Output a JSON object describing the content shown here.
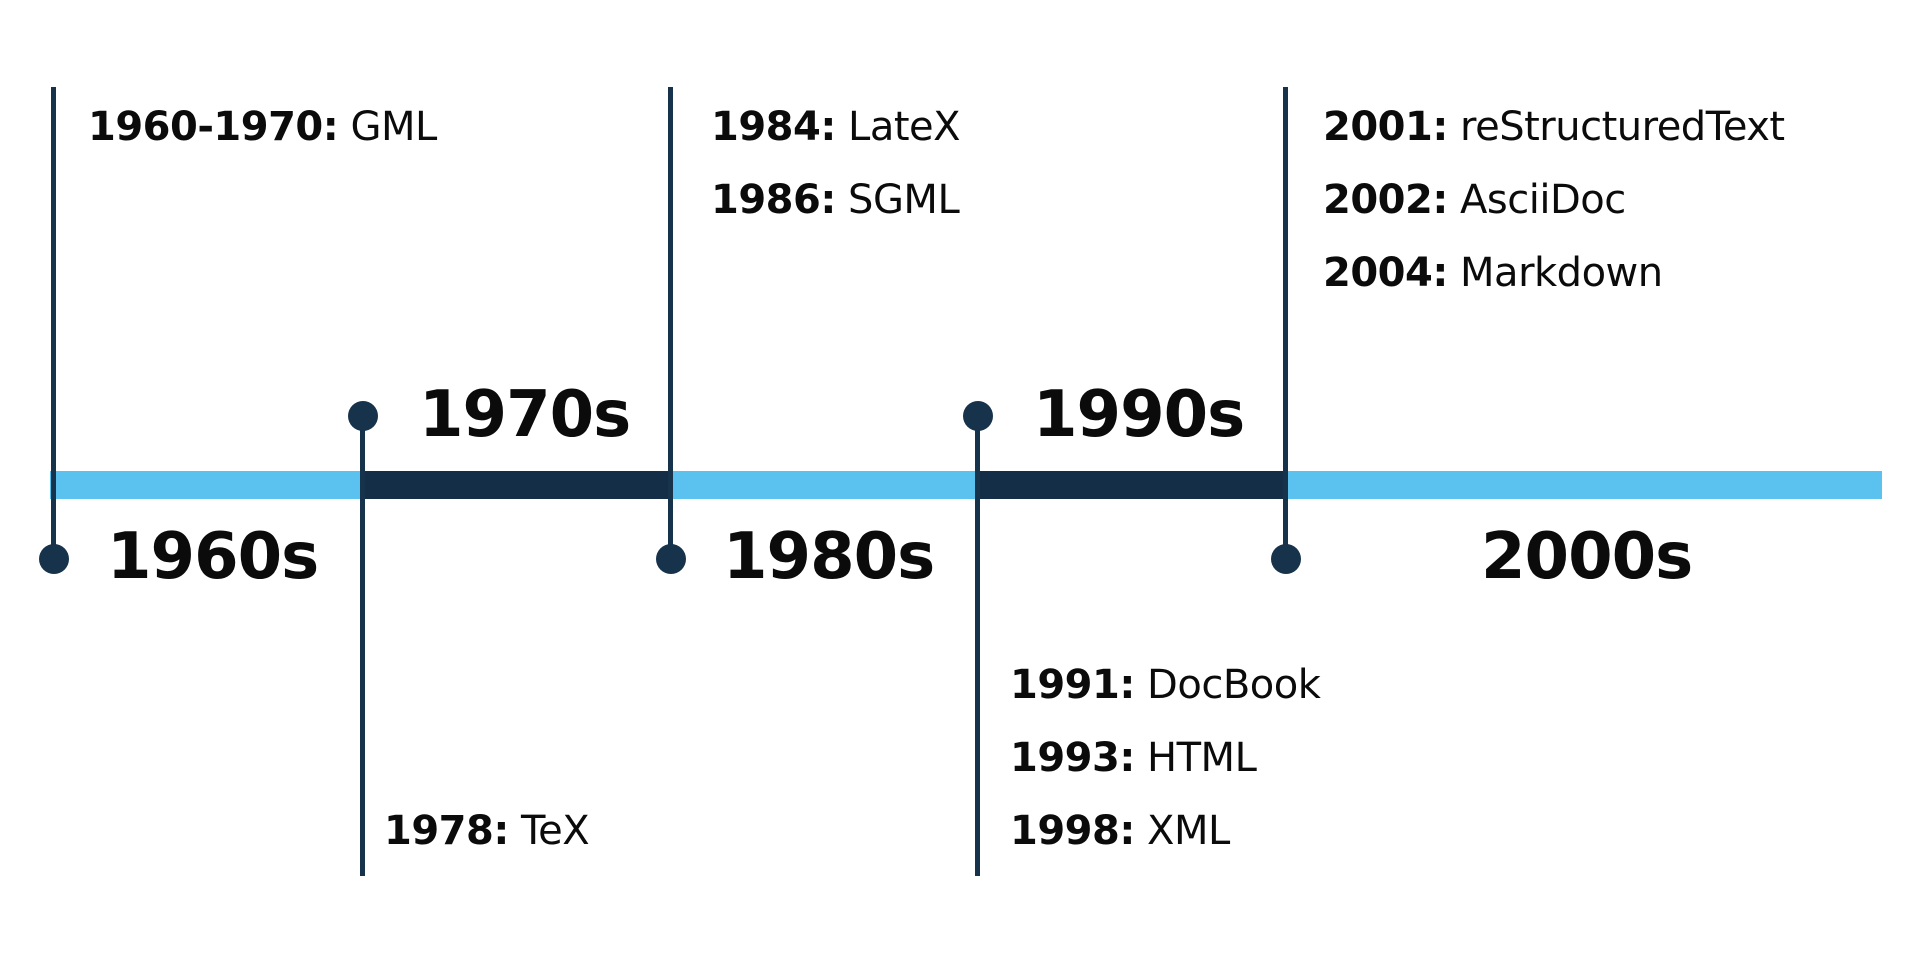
{
  "decades": [
    "1960s",
    "1970s",
    "1980s",
    "1990s",
    "2000s"
  ],
  "groups": [
    {
      "events": [
        {
          "year": "1960-1970:",
          "name": "GML"
        }
      ]
    },
    {
      "events": [
        {
          "year": "1978:",
          "name": "TeX"
        }
      ]
    },
    {
      "events": [
        {
          "year": "1984:",
          "name": "LateX"
        },
        {
          "year": "1986:",
          "name": "SGML"
        }
      ]
    },
    {
      "events": [
        {
          "year": "1991:",
          "name": "DocBook"
        },
        {
          "year": "1993:",
          "name": "HTML"
        },
        {
          "year": "1998:",
          "name": "XML"
        }
      ]
    },
    {
      "events": [
        {
          "year": "2001:",
          "name": "reStructuredText"
        },
        {
          "year": "2002:",
          "name": "AsciiDoc"
        },
        {
          "year": "2004:",
          "name": "Markdown"
        }
      ]
    }
  ],
  "colors": {
    "band_light": "#5bc2f0",
    "band_dark": "#142e48",
    "marker": "#17324b"
  }
}
